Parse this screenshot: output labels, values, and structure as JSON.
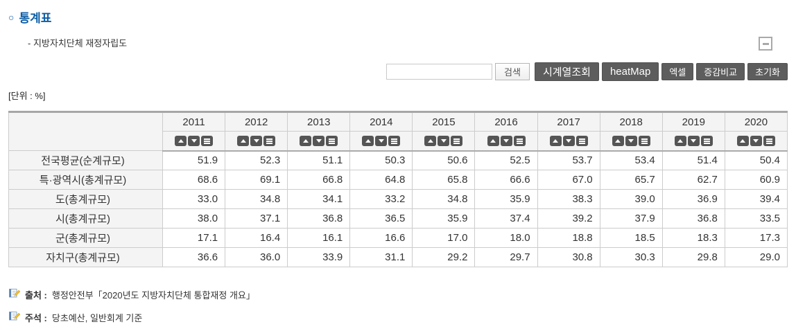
{
  "page": {
    "title_bullet": "○",
    "title": "통계표",
    "subtitle": "- 지방자치단체 재정자립도",
    "unit_label": "[단위 : %]"
  },
  "toolbar": {
    "search_value": "",
    "search_button": "검색",
    "action_buttons": [
      {
        "id": "timeseries",
        "label": "시계열조회",
        "size": "lg"
      },
      {
        "id": "heatmap",
        "label": "heatMap",
        "size": "lg"
      },
      {
        "id": "excel",
        "label": "엑셀",
        "size": "sm"
      },
      {
        "id": "compare",
        "label": "증감비교",
        "size": "sm"
      },
      {
        "id": "reset",
        "label": "초기화",
        "size": "sm"
      }
    ]
  },
  "table": {
    "years": [
      "2011",
      "2012",
      "2013",
      "2014",
      "2015",
      "2016",
      "2017",
      "2018",
      "2019",
      "2020"
    ],
    "sort_icons": [
      "sort-asc",
      "sort-desc",
      "sort-menu"
    ],
    "rows": [
      {
        "label": "전국평균(순계규모)",
        "values": [
          "51.9",
          "52.3",
          "51.1",
          "50.3",
          "50.6",
          "52.5",
          "53.7",
          "53.4",
          "51.4",
          "50.4"
        ]
      },
      {
        "label": "특·광역시(총계규모)",
        "values": [
          "68.6",
          "69.1",
          "66.8",
          "64.8",
          "65.8",
          "66.6",
          "67.0",
          "65.7",
          "62.7",
          "60.9"
        ]
      },
      {
        "label": "도(총계규모)",
        "values": [
          "33.0",
          "34.8",
          "34.1",
          "33.2",
          "34.8",
          "35.9",
          "38.3",
          "39.0",
          "36.9",
          "39.4"
        ]
      },
      {
        "label": "시(총계규모)",
        "values": [
          "38.0",
          "37.1",
          "36.8",
          "36.5",
          "35.9",
          "37.4",
          "39.2",
          "37.9",
          "36.8",
          "33.5"
        ]
      },
      {
        "label": "군(총계규모)",
        "values": [
          "17.1",
          "16.4",
          "16.1",
          "16.6",
          "17.0",
          "18.0",
          "18.8",
          "18.5",
          "18.3",
          "17.3"
        ]
      },
      {
        "label": "자치구(총계규모)",
        "values": [
          "36.6",
          "36.0",
          "33.9",
          "31.1",
          "29.2",
          "29.7",
          "30.8",
          "30.3",
          "29.8",
          "29.0"
        ]
      }
    ]
  },
  "footnotes": [
    {
      "label": "출처 :",
      "text": "행정안전부「2020년도 지방자치단체 통합재정 개요」"
    },
    {
      "label": "주석 :",
      "text": "당초예산, 일반회계 기준"
    }
  ],
  "colors": {
    "accent_blue": "#0b5da6",
    "button_dark": "#5d5d5d",
    "table_header_bg": "#f4f4f4",
    "table_border": "#cccccc",
    "table_top_border": "#a6a6a6"
  }
}
